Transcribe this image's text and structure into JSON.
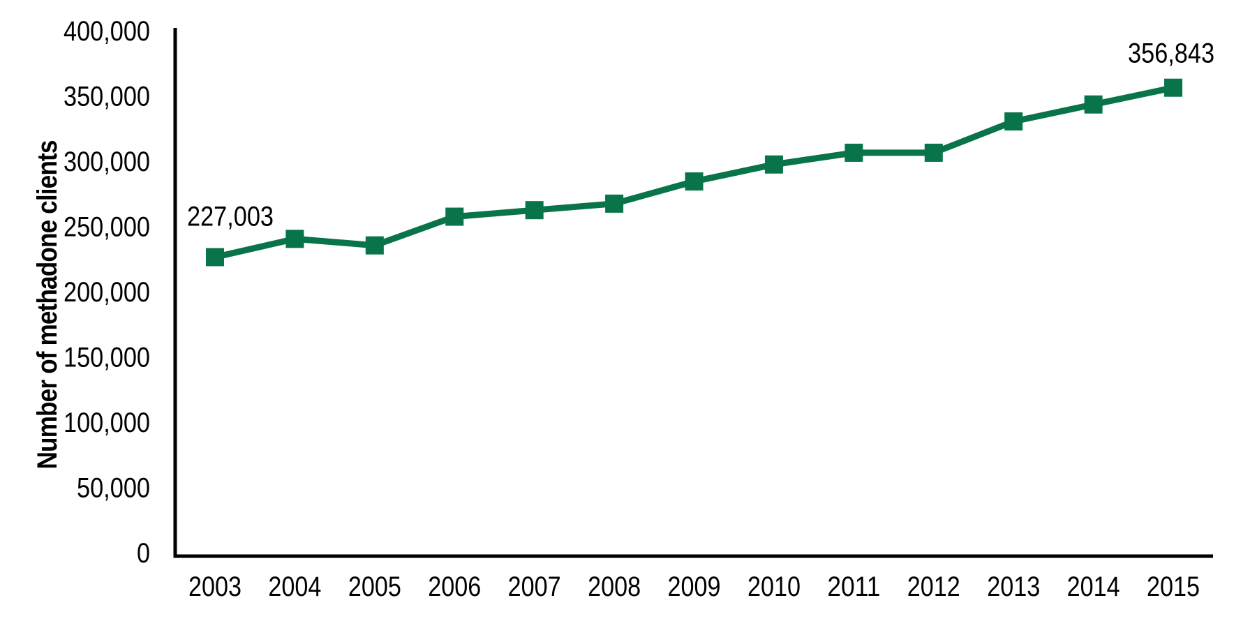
{
  "page": {
    "background_color": "#ffffff",
    "text_color": "#000000"
  },
  "chart_data": {
    "type": "line",
    "title": "",
    "xlabel": "",
    "ylabel": "Number of methadone clients",
    "categories": [
      "2003",
      "2004",
      "2005",
      "2006",
      "2007",
      "2008",
      "2009",
      "2010",
      "2011",
      "2012",
      "2013",
      "2014",
      "2015"
    ],
    "values": [
      227003,
      241000,
      236000,
      258000,
      263000,
      268000,
      285000,
      298000,
      307000,
      307000,
      331000,
      344000,
      356843
    ],
    "series": [
      {
        "name": "Number of methadone clients",
        "values": [
          227003,
          241000,
          236000,
          258000,
          263000,
          268000,
          285000,
          298000,
          307000,
          307000,
          331000,
          344000,
          356843
        ]
      }
    ],
    "ylim": [
      0,
      400000
    ],
    "ytick_step": 50000,
    "ytick_labels": [
      "0",
      "50,000",
      "100,000",
      "150,000",
      "200,000",
      "250,000",
      "300,000",
      "350,000",
      "400,000"
    ],
    "grid": false,
    "legend_position": "none",
    "annotations": [
      {
        "index": 0,
        "text": "227,003"
      },
      {
        "index": 12,
        "text": "356,843"
      }
    ],
    "line_color": "#097449",
    "marker_shape": "square",
    "axis_color": "#000000",
    "label_color": "#000000"
  }
}
